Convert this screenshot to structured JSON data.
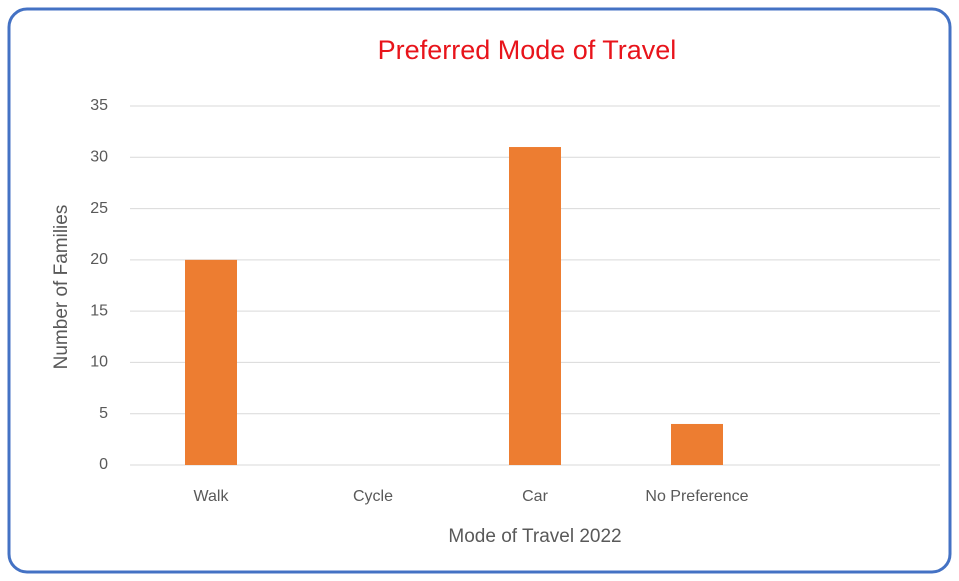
{
  "chart_data": {
    "type": "bar",
    "title": "Preferred Mode of Travel",
    "x_label": "Mode of Travel  2022",
    "y_label": "Number of Families",
    "categories": [
      "Walk",
      "Cycle",
      "Car",
      "No Preference",
      null
    ],
    "values": [
      20,
      0,
      31,
      4,
      null
    ],
    "color": "#ed7d31",
    "ylim": [
      0,
      35
    ],
    "yticks": [
      0,
      5,
      10,
      15,
      20,
      25,
      30,
      35
    ],
    "grid": true
  }
}
